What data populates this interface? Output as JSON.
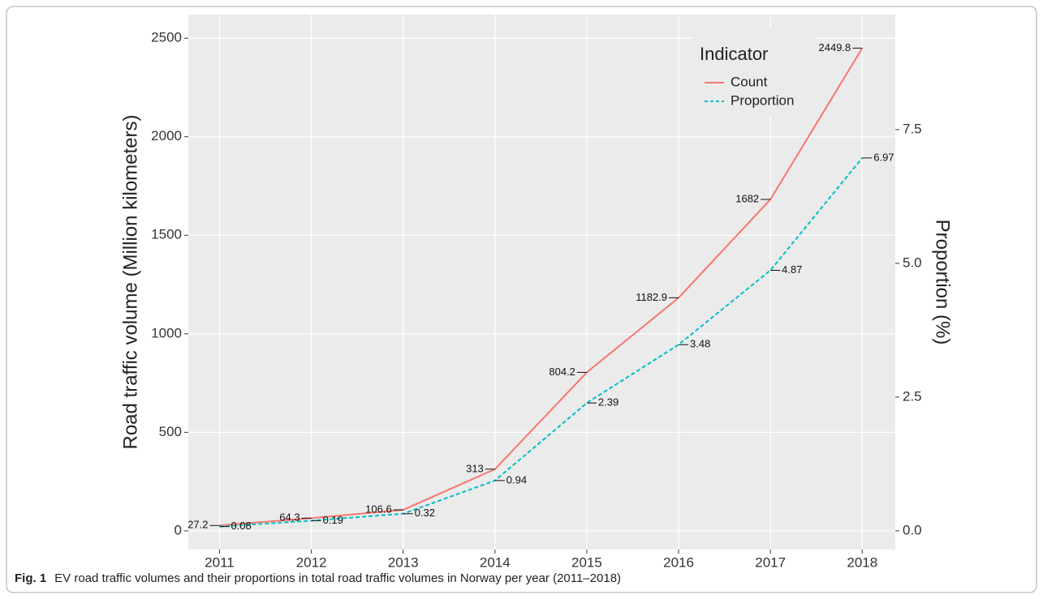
{
  "chart_data": {
    "type": "line",
    "caption": {
      "label": "Fig. 1",
      "text": "EV road traffic volumes and their proportions in total road traffic volumes in Norway per year (2011–2018)"
    },
    "ylabel": "Road traffic volume (Million kilometers)",
    "y2label": "Proportion (%)",
    "legend_title": "Indicator",
    "legend": "top-right",
    "grid": true,
    "x": [
      2011,
      2012,
      2013,
      2014,
      2015,
      2016,
      2017,
      2018
    ],
    "xlim": [
      2010.66,
      2018.36
    ],
    "xticks": [
      2011,
      2012,
      2013,
      2014,
      2015,
      2016,
      2017,
      2018
    ],
    "ylim": [
      -95,
      2620
    ],
    "yticks": [
      0,
      500,
      1000,
      1500,
      2000,
      2500
    ],
    "y2lim": [
      -0.35,
      9.65
    ],
    "y2ticks": [
      {
        "value": 0,
        "label": "0.0"
      },
      {
        "value": 2.5,
        "label": "2.5"
      },
      {
        "value": 5,
        "label": "5.0"
      },
      {
        "value": 7.5,
        "label": "7.5"
      }
    ],
    "series": [
      {
        "name": "Count",
        "color": "#F8766D",
        "dashed": false,
        "values": [
          27.2,
          64.3,
          106.6,
          313,
          804.2,
          1182.9,
          1682,
          2449.8
        ]
      },
      {
        "name": "Proportion",
        "color": "#00BFC4",
        "dashed": true,
        "axis": "y2",
        "values": [
          0.08,
          0.19,
          0.32,
          0.94,
          2.39,
          3.48,
          4.87,
          6.97
        ]
      }
    ]
  }
}
